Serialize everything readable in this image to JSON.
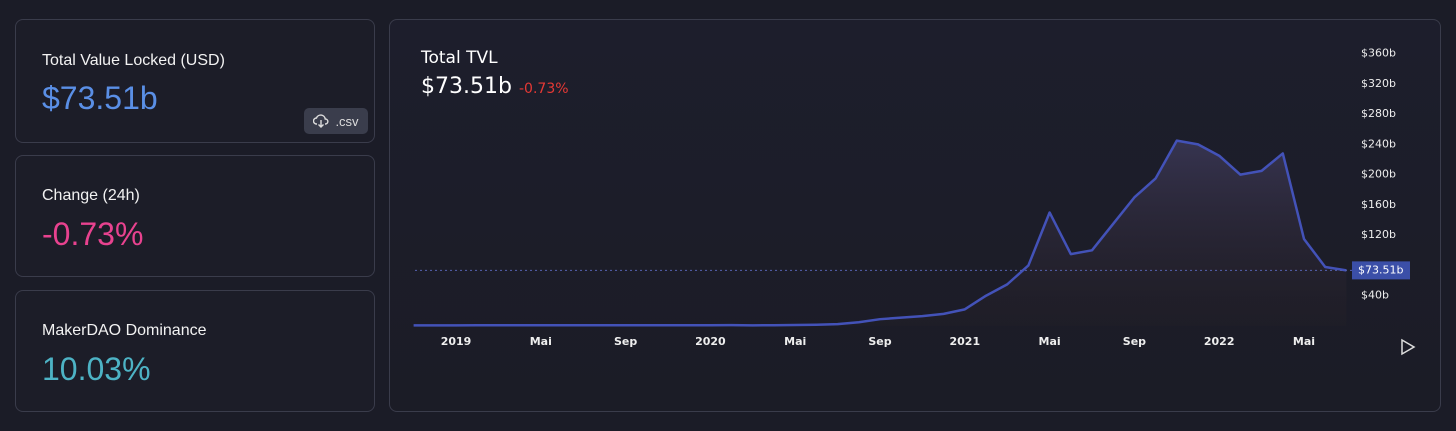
{
  "cards": [
    {
      "label": "Total Value Locked (USD)",
      "value": "$73.51b"
    },
    {
      "label": "Change (24h)",
      "value": "-0.73%"
    },
    {
      "label": "MakerDAO Dominance",
      "value": "10.03%"
    }
  ],
  "csv_button": ".csv",
  "chart_data": {
    "type": "area",
    "title": "Total TVL",
    "headline": "$73.51b",
    "change": "-0.73%",
    "color": "#4352b8",
    "x": [
      "2018-11",
      "2018-12",
      "2019-01",
      "2019-02",
      "2019-03",
      "2019-04",
      "2019-05",
      "2019-06",
      "2019-07",
      "2019-08",
      "2019-09",
      "2019-10",
      "2019-11",
      "2019-12",
      "2020-01",
      "2020-02",
      "2020-03",
      "2020-04",
      "2020-05",
      "2020-06",
      "2020-07",
      "2020-08",
      "2020-09",
      "2020-10",
      "2020-11",
      "2020-12",
      "2021-01",
      "2021-02",
      "2021-03",
      "2021-04",
      "2021-05",
      "2021-06",
      "2021-07",
      "2021-08",
      "2021-09",
      "2021-10",
      "2021-11",
      "2021-12",
      "2022-01",
      "2022-02",
      "2022-03",
      "2022-04",
      "2022-05",
      "2022-06",
      "2022-07"
    ],
    "values": [
      0.8,
      0.8,
      0.9,
      1,
      1,
      1,
      1,
      1,
      1,
      1,
      1,
      1,
      1,
      1,
      1,
      1.1,
      0.9,
      1,
      1.3,
      1.6,
      2.5,
      5,
      9,
      11,
      13,
      16,
      22,
      40,
      55,
      80,
      150,
      95,
      100,
      135,
      170,
      195,
      245,
      240,
      225,
      200,
      205,
      228,
      115,
      78,
      73.51
    ],
    "ylim": [
      0,
      370
    ],
    "yticks": [
      {
        "value": 40,
        "label": "$40b"
      },
      {
        "value": 120,
        "label": "$120b"
      },
      {
        "value": 160,
        "label": "$160b"
      },
      {
        "value": 200,
        "label": "$200b"
      },
      {
        "value": 240,
        "label": "$240b"
      },
      {
        "value": 280,
        "label": "$280b"
      },
      {
        "value": 320,
        "label": "$320b"
      },
      {
        "value": 360,
        "label": "$360b"
      }
    ],
    "xticks": [
      {
        "value": "2019-01",
        "label": "2019"
      },
      {
        "value": "2019-05",
        "label": "Mai"
      },
      {
        "value": "2019-09",
        "label": "Sep"
      },
      {
        "value": "2020-01",
        "label": "2020"
      },
      {
        "value": "2020-05",
        "label": "Mai"
      },
      {
        "value": "2020-09",
        "label": "Sep"
      },
      {
        "value": "2021-01",
        "label": "2021"
      },
      {
        "value": "2021-05",
        "label": "Mai"
      },
      {
        "value": "2021-09",
        "label": "Sep"
      },
      {
        "value": "2022-01",
        "label": "2022"
      },
      {
        "value": "2022-05",
        "label": "Mai"
      }
    ],
    "current": {
      "value": 73.51,
      "label": "$73.51b"
    }
  }
}
